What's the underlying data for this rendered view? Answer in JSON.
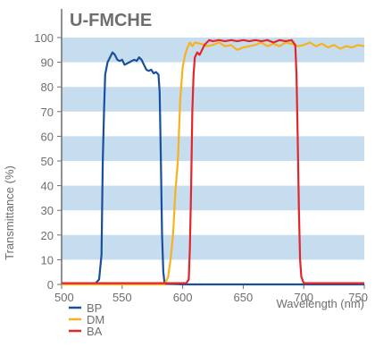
{
  "chart_data": {
    "type": "line",
    "title": "U-FMCHE",
    "xlabel": "Wavelength (nm)",
    "ylabel": "Transmittance (%)",
    "xlim": [
      500,
      750
    ],
    "ylim": [
      0,
      100
    ],
    "x_ticks": [
      500,
      550,
      600,
      650,
      700,
      750
    ],
    "y_ticks": [
      0,
      10,
      20,
      30,
      40,
      50,
      60,
      70,
      80,
      90,
      100
    ],
    "grid": "alternating horizontal bands",
    "legend_position": "bottom-left",
    "series": [
      {
        "name": "BP",
        "color": "#1a4f9c",
        "points": [
          [
            500,
            0.5
          ],
          [
            528,
            0.5
          ],
          [
            531,
            2
          ],
          [
            533,
            12
          ],
          [
            534,
            50
          ],
          [
            535,
            70
          ],
          [
            536,
            85
          ],
          [
            538,
            90
          ],
          [
            540,
            92
          ],
          [
            542,
            94
          ],
          [
            544,
            93
          ],
          [
            546,
            91
          ],
          [
            548,
            90.5
          ],
          [
            550,
            91
          ],
          [
            552,
            89
          ],
          [
            554,
            89.5
          ],
          [
            556,
            90
          ],
          [
            558,
            90.5
          ],
          [
            560,
            91
          ],
          [
            562,
            90.5
          ],
          [
            564,
            92
          ],
          [
            566,
            91
          ],
          [
            568,
            89
          ],
          [
            570,
            87
          ],
          [
            572,
            86.5
          ],
          [
            574,
            87
          ],
          [
            576,
            85.5
          ],
          [
            578,
            86
          ],
          [
            580,
            85
          ],
          [
            581,
            78
          ],
          [
            582,
            50
          ],
          [
            583,
            20
          ],
          [
            584,
            5
          ],
          [
            585,
            0.5
          ],
          [
            600,
            0
          ],
          [
            750,
            0
          ]
        ]
      },
      {
        "name": "DM",
        "color": "#f7b21d",
        "points": [
          [
            500,
            0
          ],
          [
            585,
            0
          ],
          [
            588,
            3
          ],
          [
            590,
            10
          ],
          [
            592,
            20
          ],
          [
            594,
            38
          ],
          [
            596,
            50
          ],
          [
            598,
            75
          ],
          [
            600,
            88
          ],
          [
            602,
            93
          ],
          [
            604,
            96
          ],
          [
            606,
            98
          ],
          [
            608,
            96.5
          ],
          [
            610,
            98
          ],
          [
            615,
            97.5
          ],
          [
            620,
            96.5
          ],
          [
            625,
            97
          ],
          [
            630,
            98
          ],
          [
            635,
            96.5
          ],
          [
            640,
            97
          ],
          [
            645,
            95
          ],
          [
            650,
            96
          ],
          [
            655,
            96.5
          ],
          [
            660,
            97
          ],
          [
            665,
            98
          ],
          [
            670,
            96.5
          ],
          [
            675,
            97.5
          ],
          [
            680,
            96.5
          ],
          [
            685,
            98
          ],
          [
            690,
            97.5
          ],
          [
            695,
            96.5
          ],
          [
            700,
            97
          ],
          [
            705,
            98
          ],
          [
            710,
            96.5
          ],
          [
            715,
            97.5
          ],
          [
            720,
            96
          ],
          [
            725,
            97
          ],
          [
            730,
            95.5
          ],
          [
            735,
            96.5
          ],
          [
            740,
            96
          ],
          [
            745,
            97
          ],
          [
            750,
            96.5
          ]
        ]
      },
      {
        "name": "BA",
        "color": "#e3262a",
        "points": [
          [
            500,
            0.5
          ],
          [
            603,
            0.5
          ],
          [
            605,
            2
          ],
          [
            606,
            15
          ],
          [
            607,
            40
          ],
          [
            608,
            70
          ],
          [
            609,
            85
          ],
          [
            610,
            92
          ],
          [
            612,
            94
          ],
          [
            614,
            93
          ],
          [
            616,
            95
          ],
          [
            618,
            97
          ],
          [
            620,
            98
          ],
          [
            622,
            99
          ],
          [
            625,
            98.5
          ],
          [
            630,
            99
          ],
          [
            635,
            98.5
          ],
          [
            640,
            99
          ],
          [
            645,
            98.5
          ],
          [
            650,
            99
          ],
          [
            655,
            98.5
          ],
          [
            660,
            99
          ],
          [
            665,
            98.5
          ],
          [
            670,
            99
          ],
          [
            675,
            98
          ],
          [
            680,
            99
          ],
          [
            685,
            98.5
          ],
          [
            690,
            99
          ],
          [
            693,
            97
          ],
          [
            694,
            85
          ],
          [
            695,
            60
          ],
          [
            696,
            30
          ],
          [
            697,
            10
          ],
          [
            698,
            3
          ],
          [
            700,
            0.5
          ],
          [
            750,
            0.5
          ]
        ]
      }
    ]
  }
}
